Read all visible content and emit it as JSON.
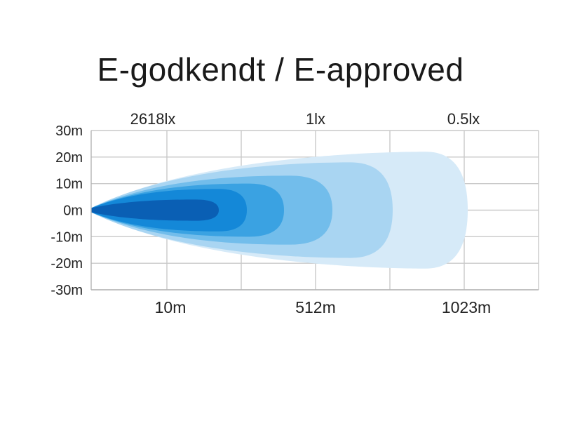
{
  "title": "E-godkendt / E-approved",
  "chart_data": {
    "type": "area",
    "title": "E-godkendt / E-approved",
    "xlabel": "",
    "ylabel": "",
    "x_tick_labels": [
      "10m",
      "512m",
      "1023m"
    ],
    "y_ticks": [
      30,
      20,
      10,
      0,
      -10,
      -20,
      -30
    ],
    "y_tick_labels": [
      "30m",
      "20m",
      "10m",
      "0m",
      "-10m",
      "-20m",
      "-30m"
    ],
    "ylim": [
      -30,
      30
    ],
    "grid": true,
    "lux_labels": [
      "2618lx",
      "1lx",
      "0.5lx"
    ],
    "series": [
      {
        "color": "#d6eaf8",
        "half_width_m": 22
      },
      {
        "color": "#a9d5f2",
        "half_width_m": 18
      },
      {
        "color": "#72bdeb",
        "half_width_m": 13
      },
      {
        "color": "#3aa2e2",
        "half_width_m": 10
      },
      {
        "color": "#1488d8",
        "half_width_m": 8
      },
      {
        "color": "#0a5fb4",
        "half_width_m": 4
      }
    ]
  }
}
